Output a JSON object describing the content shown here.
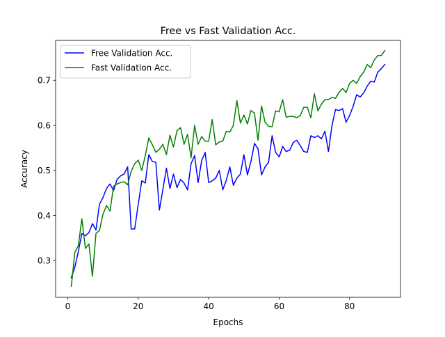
{
  "chart_data": {
    "type": "line",
    "title": "Free vs Fast Validation Acc.",
    "xlabel": "Epochs",
    "ylabel": "Accuracy",
    "xlim": [
      -3.45,
      94.45
    ],
    "ylim": [
      0.2185,
      0.7885
    ],
    "xticks": [
      0,
      20,
      40,
      60,
      80
    ],
    "yticks": [
      0.3,
      0.4,
      0.5,
      0.6,
      0.7
    ],
    "x": [
      1,
      2,
      3,
      4,
      5,
      6,
      7,
      8,
      9,
      10,
      11,
      12,
      13,
      14,
      15,
      16,
      17,
      18,
      19,
      20,
      21,
      22,
      23,
      24,
      25,
      26,
      27,
      28,
      29,
      30,
      31,
      32,
      33,
      34,
      35,
      36,
      37,
      38,
      39,
      40,
      41,
      42,
      43,
      44,
      45,
      46,
      47,
      48,
      49,
      50,
      51,
      52,
      53,
      54,
      55,
      56,
      57,
      58,
      59,
      60,
      61,
      62,
      63,
      64,
      65,
      66,
      67,
      68,
      69,
      70,
      71,
      72,
      73,
      74,
      75,
      76,
      77,
      78,
      79,
      80,
      81,
      82,
      83,
      84,
      85,
      86,
      87,
      88,
      89,
      90
    ],
    "legend_position": "upper-left",
    "series": [
      {
        "name": "Free Validation Acc.",
        "color": "#0000ff",
        "values": [
          0.262,
          0.285,
          0.32,
          0.36,
          0.355,
          0.362,
          0.382,
          0.368,
          0.425,
          0.44,
          0.46,
          0.47,
          0.455,
          0.48,
          0.488,
          0.492,
          0.508,
          0.37,
          0.37,
          0.425,
          0.477,
          0.472,
          0.535,
          0.52,
          0.518,
          0.412,
          0.458,
          0.505,
          0.46,
          0.492,
          0.462,
          0.48,
          0.472,
          0.457,
          0.515,
          0.533,
          0.473,
          0.522,
          0.54,
          0.473,
          0.477,
          0.483,
          0.5,
          0.457,
          0.478,
          0.508,
          0.467,
          0.483,
          0.492,
          0.535,
          0.49,
          0.52,
          0.56,
          0.548,
          0.49,
          0.508,
          0.518,
          0.577,
          0.54,
          0.53,
          0.553,
          0.542,
          0.545,
          0.562,
          0.567,
          0.555,
          0.542,
          0.54,
          0.577,
          0.573,
          0.577,
          0.57,
          0.587,
          0.542,
          0.6,
          0.635,
          0.633,
          0.637,
          0.607,
          0.622,
          0.642,
          0.668,
          0.663,
          0.672,
          0.687,
          0.698,
          0.696,
          0.718,
          0.726,
          0.735
        ]
      },
      {
        "name": "Fast Validation Acc.",
        "color": "#008000",
        "values": [
          0.243,
          0.318,
          0.333,
          0.393,
          0.327,
          0.337,
          0.265,
          0.36,
          0.367,
          0.403,
          0.422,
          0.41,
          0.465,
          0.47,
          0.473,
          0.475,
          0.468,
          0.498,
          0.515,
          0.523,
          0.5,
          0.533,
          0.572,
          0.557,
          0.54,
          0.547,
          0.558,
          0.535,
          0.578,
          0.552,
          0.588,
          0.595,
          0.558,
          0.58,
          0.528,
          0.6,
          0.558,
          0.575,
          0.565,
          0.565,
          0.613,
          0.557,
          0.563,
          0.565,
          0.587,
          0.585,
          0.6,
          0.655,
          0.605,
          0.623,
          0.603,
          0.633,
          0.627,
          0.567,
          0.643,
          0.607,
          0.598,
          0.597,
          0.632,
          0.63,
          0.657,
          0.618,
          0.62,
          0.62,
          0.617,
          0.622,
          0.64,
          0.64,
          0.617,
          0.67,
          0.632,
          0.647,
          0.657,
          0.657,
          0.662,
          0.66,
          0.673,
          0.682,
          0.673,
          0.693,
          0.7,
          0.693,
          0.708,
          0.718,
          0.735,
          0.728,
          0.745,
          0.755,
          0.755,
          0.766
        ]
      }
    ]
  }
}
